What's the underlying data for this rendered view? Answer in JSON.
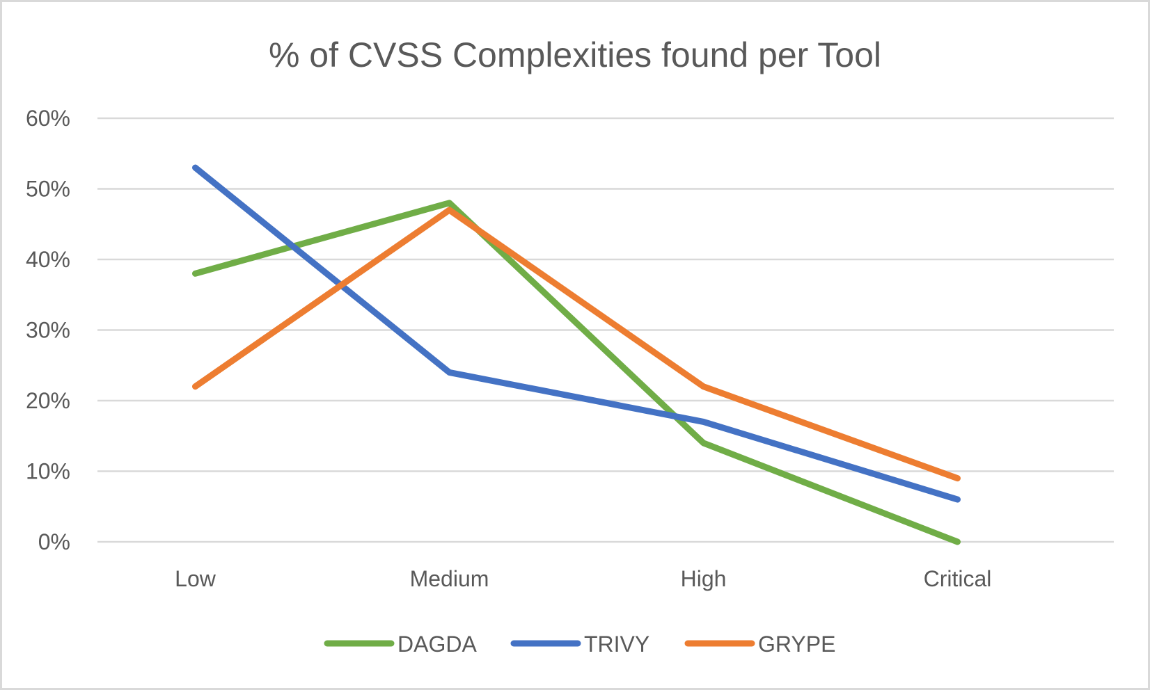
{
  "chart_data": {
    "type": "line",
    "title": "% of CVSS Complexities found per Tool",
    "xlabel": "",
    "ylabel": "",
    "categories": [
      "Low",
      "Medium",
      "High",
      "Critical"
    ],
    "ylim": [
      0,
      60
    ],
    "yticks": [
      0,
      10,
      20,
      30,
      40,
      50,
      60
    ],
    "ytick_labels": [
      "0%",
      "10%",
      "20%",
      "30%",
      "40%",
      "50%",
      "60%"
    ],
    "grid": true,
    "legend_position": "bottom",
    "series": [
      {
        "name": "DAGDA",
        "color": "#70ad47",
        "values": [
          38,
          48,
          14,
          0
        ]
      },
      {
        "name": "TRIVY",
        "color": "#4472c4",
        "values": [
          53,
          24,
          17,
          6
        ]
      },
      {
        "name": "GRYPE",
        "color": "#ed7d31",
        "values": [
          22,
          47,
          22,
          9
        ]
      }
    ]
  }
}
